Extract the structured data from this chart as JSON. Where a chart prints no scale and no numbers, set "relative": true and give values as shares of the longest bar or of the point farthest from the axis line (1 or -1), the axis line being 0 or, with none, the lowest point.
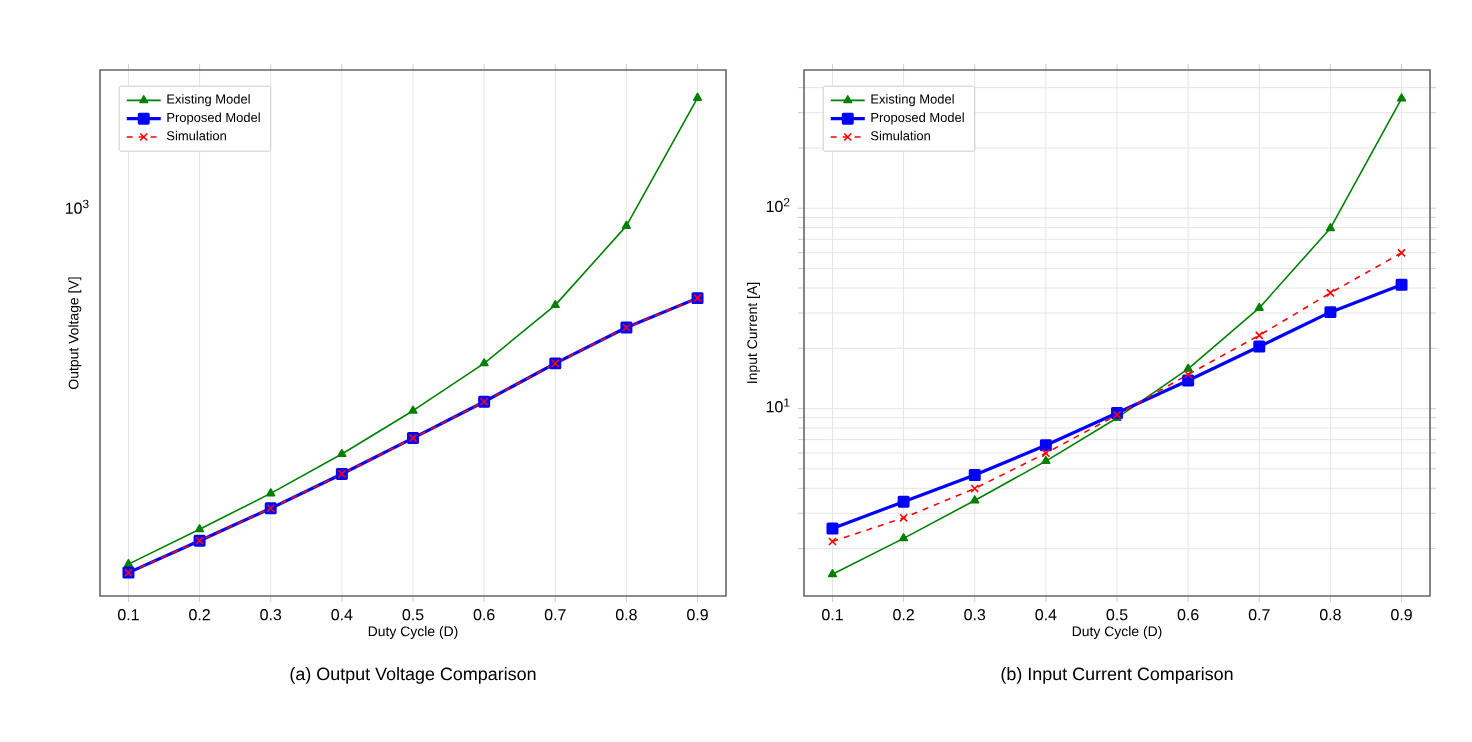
{
  "chart_data": [
    {
      "type": "line",
      "title": "(a) Output Voltage Comparison",
      "xlabel": "Duty Cycle (D)",
      "ylabel": "Output Voltage [V]",
      "x": [
        0.1,
        0.2,
        0.3,
        0.4,
        0.5,
        0.6,
        0.7,
        0.8,
        0.9
      ],
      "relative": true,
      "series": [
        {
          "name": "Existing Model",
          "color": "#008000",
          "marker": "triangle",
          "line_style": "solid",
          "values": [
            0.064,
            0.134,
            0.206,
            0.285,
            0.372,
            0.467,
            0.584,
            0.743,
            1
          ]
        },
        {
          "name": "Proposed Model",
          "color": "#0000ff",
          "marker": "square",
          "line_style": "solid",
          "values": [
            0.047,
            0.111,
            0.176,
            0.245,
            0.317,
            0.39,
            0.467,
            0.539,
            0.598
          ]
        },
        {
          "name": "Simulation",
          "color": "#ff0000",
          "marker": "cross",
          "line_style": "dashed",
          "values": [
            0.047,
            0.111,
            0.176,
            0.245,
            0.317,
            0.39,
            0.467,
            0.539,
            0.598
          ]
        }
      ],
      "xlim": [
        0.06,
        0.94
      ],
      "xticks": [
        0.1,
        0.2,
        0.3,
        0.4,
        0.5,
        0.6,
        0.7,
        0.8,
        0.9
      ],
      "annotations": [
        "10$^{3}$"
      ],
      "grid": "x",
      "legend": "top left"
    },
    {
      "type": "line",
      "title": "(b) Input Current Comparison",
      "xlabel": "Duty Cycle (D)",
      "ylabel": "Input Current [A]",
      "x": [
        0.1,
        0.2,
        0.3,
        0.4,
        0.5,
        0.6,
        0.7,
        0.8,
        0.9
      ],
      "series": [
        {
          "name": "Existing Model",
          "color": "#008000",
          "marker": "triangle",
          "line_style": "solid",
          "values": [
            1.49,
            2.25,
            3.48,
            5.47,
            8.98,
            15.8,
            31.8,
            79.5,
            353
          ]
        },
        {
          "name": "Proposed Model",
          "color": "#0000ff",
          "marker": "square",
          "line_style": "solid",
          "values": [
            2.52,
            3.43,
            4.66,
            6.56,
            9.5,
            13.8,
            20.4,
            30.3,
            41.5
          ]
        },
        {
          "name": "Simulation",
          "color": "#ff0000",
          "marker": "cross",
          "line_style": "dashed",
          "values": [
            2.17,
            2.85,
            3.99,
            5.99,
            9.3,
            14.8,
            23.2,
            37.8,
            59.9
          ]
        }
      ],
      "xlim": [
        0.06,
        0.94
      ],
      "ylim": [
        1.16,
        490
      ],
      "xticks": [
        0.1,
        0.2,
        0.3,
        0.4,
        0.5,
        0.6,
        0.7,
        0.8,
        0.9
      ],
      "yticks": [
        {
          "value": 2,
          "label": null
        },
        {
          "value": 3,
          "label": null
        },
        {
          "value": 4,
          "label": null
        },
        {
          "value": 5,
          "label": null
        },
        {
          "value": 6,
          "label": null
        },
        {
          "value": 7,
          "label": null
        },
        {
          "value": 8,
          "label": null
        },
        {
          "value": 9,
          "label": null
        },
        {
          "value": 10,
          "label": "10$^{1}$"
        },
        {
          "value": 20,
          "label": null
        },
        {
          "value": 30,
          "label": null
        },
        {
          "value": 40,
          "label": null
        },
        {
          "value": 50,
          "label": null
        },
        {
          "value": 60,
          "label": null
        },
        {
          "value": 70,
          "label": null
        },
        {
          "value": 80,
          "label": null
        },
        {
          "value": 90,
          "label": null
        },
        {
          "value": 100,
          "label": "10$^{2}$"
        },
        {
          "value": 200,
          "label": null
        },
        {
          "value": 300,
          "label": null
        },
        {
          "value": 400,
          "label": null
        }
      ],
      "log": "y",
      "grid": true,
      "legend": "top left"
    }
  ]
}
